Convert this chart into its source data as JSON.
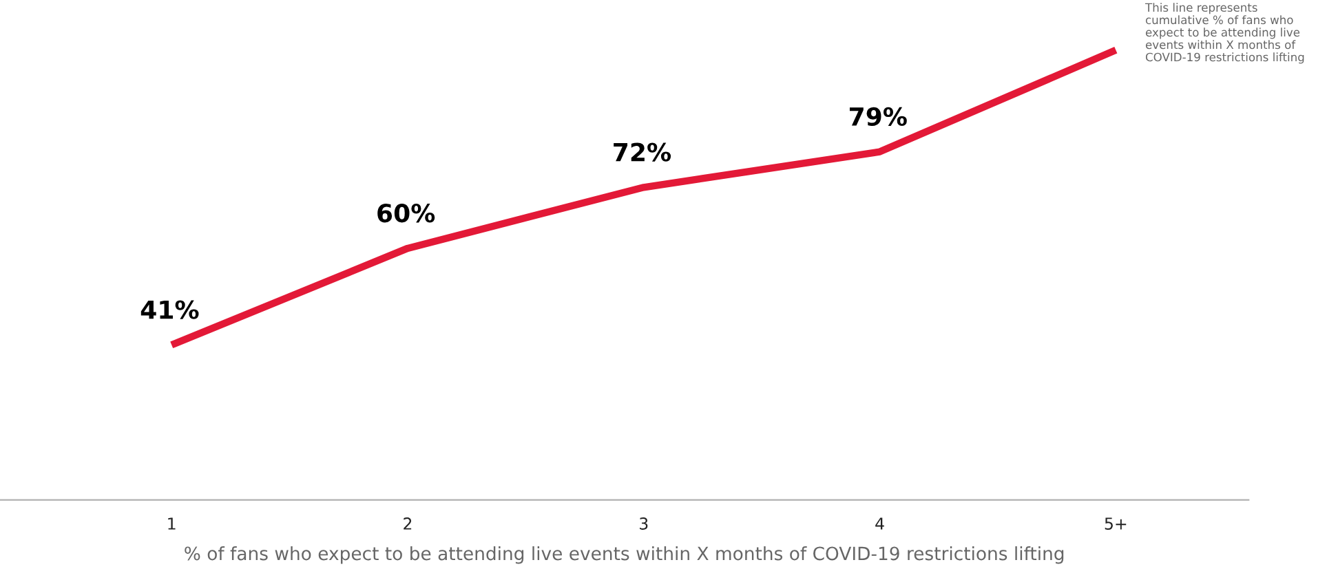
{
  "chart_data": {
    "type": "line",
    "xlabel": "% of fans who expect to be attending live events within X months of COVID-19 restrictions lifting",
    "categories": [
      "1",
      "2",
      "3",
      "4",
      "5+"
    ],
    "series": [
      {
        "color": "#e31937",
        "values": [
          41,
          60,
          72,
          79,
          99
        ],
        "value_labels": [
          "41%",
          "60%",
          "72%",
          "79%",
          null
        ]
      }
    ],
    "annotations": [
      "This line represents\ncumulative % of fans who\nexpect to be attending live\nevents within X months of\nCOVID-19 restrictions lifting"
    ],
    "grid": false,
    "legend": false,
    "marker": "none",
    "line_style": "solid"
  }
}
